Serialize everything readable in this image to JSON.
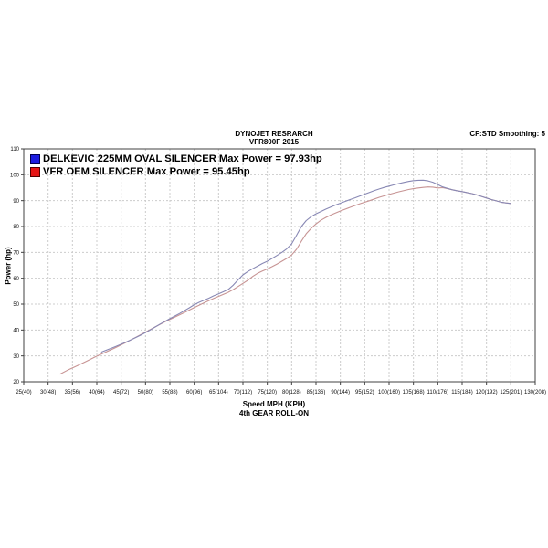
{
  "header": {
    "title": "DYNOJET RESRARCH",
    "subtitle": "VFR800F 2015",
    "smoothing_note": "CF:STD Smoothing: 5"
  },
  "chart_data": {
    "type": "line",
    "title": "DYNOJET RESRARCH",
    "subtitle": "VFR800F 2015",
    "xlabel": "Speed MPH (KPH)",
    "footnote": "4th GEAR ROLL-ON",
    "ylabel": "Power (hp)",
    "xlim": [
      25,
      130
    ],
    "ylim": [
      20,
      110
    ],
    "grid": "dashed-gray-on",
    "grid_color": "#cccccc",
    "frame_color": "#404040",
    "legend_position": "top-left-inside",
    "x_tick_labels": [
      "25(40)",
      "30(48)",
      "35(56)",
      "40(64)",
      "45(72)",
      "50(80)",
      "55(88)",
      "60(96)",
      "65(104)",
      "70(112)",
      "75(120)",
      "80(128)",
      "85(136)",
      "90(144)",
      "95(152)",
      "100(160)",
      "105(168)",
      "110(176)",
      "115(184)",
      "120(192)",
      "125(201)",
      "130(208)"
    ],
    "y_tick_labels": [
      110,
      100,
      90,
      80,
      70,
      60,
      50,
      40,
      30,
      20
    ],
    "series": [
      {
        "id": "delkevic",
        "legend": "DELKEVIC 225MM OVAL SILENCER Max Power = 97.93hp",
        "max_power_hp": 97.93,
        "line_color": "#8888b4",
        "swatch_color": "#1c1cdf",
        "swatch_border": "#000050",
        "points_mph_hp": [
          [
            41,
            31.5
          ],
          [
            43,
            33
          ],
          [
            45,
            34.5
          ],
          [
            47,
            36.2
          ],
          [
            49,
            38
          ],
          [
            51,
            40.1
          ],
          [
            53,
            42.3
          ],
          [
            55,
            44.4
          ],
          [
            57,
            46.4
          ],
          [
            59,
            48.6
          ],
          [
            60,
            49.8
          ],
          [
            61,
            50.7
          ],
          [
            62,
            51.5
          ],
          [
            63,
            52.3
          ],
          [
            64,
            53.2
          ],
          [
            65,
            54
          ],
          [
            66,
            54.8
          ],
          [
            67,
            55.7
          ],
          [
            68,
            57.3
          ],
          [
            69,
            59.4
          ],
          [
            70,
            61.3
          ],
          [
            71,
            62.6
          ],
          [
            72,
            63.7
          ],
          [
            73,
            64.7
          ],
          [
            74,
            65.7
          ],
          [
            75,
            66.6
          ],
          [
            76,
            67.7
          ],
          [
            77,
            68.8
          ],
          [
            78,
            70
          ],
          [
            79,
            71.4
          ],
          [
            80,
            73.3
          ],
          [
            81,
            76.6
          ],
          [
            82,
            80
          ],
          [
            83,
            82.3
          ],
          [
            84,
            83.8
          ],
          [
            85,
            84.9
          ],
          [
            86,
            85.8
          ],
          [
            87,
            86.7
          ],
          [
            88,
            87.5
          ],
          [
            89,
            88.3
          ],
          [
            90,
            89
          ],
          [
            91,
            89.7
          ],
          [
            92,
            90.4
          ],
          [
            93,
            91.1
          ],
          [
            94,
            91.8
          ],
          [
            95,
            92.5
          ],
          [
            96,
            93.2
          ],
          [
            97,
            93.9
          ],
          [
            98,
            94.5
          ],
          [
            99,
            95.1
          ],
          [
            100,
            95.6
          ],
          [
            101,
            96.1
          ],
          [
            102,
            96.6
          ],
          [
            103,
            97
          ],
          [
            104,
            97.4
          ],
          [
            105,
            97.7
          ],
          [
            106,
            97.85
          ],
          [
            107,
            97.9
          ],
          [
            108,
            97.6
          ],
          [
            109,
            97.1
          ],
          [
            110,
            96.2
          ],
          [
            111,
            95.3
          ],
          [
            112,
            94.7
          ],
          [
            113,
            94.2
          ],
          [
            114,
            93.8
          ],
          [
            115,
            93.5
          ],
          [
            116,
            93.1
          ],
          [
            117,
            92.7
          ],
          [
            118,
            92.2
          ],
          [
            119,
            91.6
          ],
          [
            120,
            91
          ],
          [
            121,
            90.4
          ],
          [
            122,
            89.9
          ],
          [
            123,
            89.4
          ],
          [
            124,
            89.1
          ],
          [
            125,
            88.9
          ]
        ]
      },
      {
        "id": "vfr-oem",
        "legend": "VFR OEM SILENCER Max Power = 95.45hp",
        "max_power_hp": 95.45,
        "line_color": "#c79494",
        "swatch_color": "#e51515",
        "swatch_border": "#500000",
        "points_mph_hp": [
          [
            32.5,
            23
          ],
          [
            34,
            24.5
          ],
          [
            36,
            26.2
          ],
          [
            38,
            28
          ],
          [
            40,
            29.9
          ],
          [
            42,
            31.6
          ],
          [
            44,
            33.3
          ],
          [
            46,
            35.2
          ],
          [
            48,
            37.2
          ],
          [
            50,
            39.2
          ],
          [
            52,
            41.2
          ],
          [
            54,
            43.2
          ],
          [
            56,
            45
          ],
          [
            58,
            46.8
          ],
          [
            60,
            48.7
          ],
          [
            62,
            50.5
          ],
          [
            64,
            52.2
          ],
          [
            66,
            53.8
          ],
          [
            67,
            54.6
          ],
          [
            68,
            55.6
          ],
          [
            69,
            56.8
          ],
          [
            70,
            58
          ],
          [
            71,
            59.2
          ],
          [
            72,
            60.7
          ],
          [
            73,
            61.9
          ],
          [
            74,
            62.8
          ],
          [
            75,
            63.6
          ],
          [
            76,
            64.5
          ],
          [
            77,
            65.5
          ],
          [
            78,
            66.6
          ],
          [
            79,
            67.7
          ],
          [
            80,
            69
          ],
          [
            81,
            71.2
          ],
          [
            82,
            74.3
          ],
          [
            83,
            77.2
          ],
          [
            84,
            79.3
          ],
          [
            85,
            81
          ],
          [
            86,
            82.4
          ],
          [
            87,
            83.5
          ],
          [
            88,
            84.4
          ],
          [
            89,
            85.2
          ],
          [
            90,
            86
          ],
          [
            92,
            87.4
          ],
          [
            94,
            88.8
          ],
          [
            96,
            90
          ],
          [
            98,
            91.3
          ],
          [
            100,
            92.4
          ],
          [
            102,
            93.4
          ],
          [
            104,
            94.3
          ],
          [
            105,
            94.6
          ],
          [
            106,
            94.9
          ],
          [
            107,
            95.1
          ],
          [
            108,
            95.3
          ],
          [
            109,
            95.2
          ],
          [
            110,
            94.9
          ],
          [
            111,
            95
          ],
          [
            112,
            94.6
          ],
          [
            113,
            94.2
          ],
          [
            114,
            93.8
          ],
          [
            115,
            93.5
          ],
          [
            116,
            93.1
          ],
          [
            117,
            92.7
          ],
          [
            118,
            92.2
          ],
          [
            119,
            91.6
          ],
          [
            120,
            91
          ],
          [
            121,
            90.4
          ],
          [
            122,
            89.9
          ],
          [
            123,
            89.4
          ],
          [
            124,
            89.1
          ],
          [
            125,
            88.9
          ]
        ]
      }
    ]
  }
}
